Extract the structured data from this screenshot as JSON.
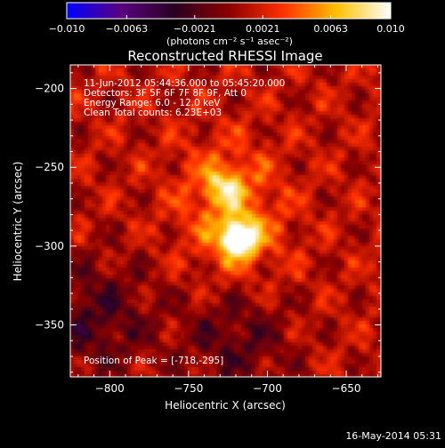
{
  "chart_data": {
    "type": "heatmap",
    "title": "Reconstructed RHESSI Image",
    "xlabel": "Heliocentric X (arcsec)",
    "ylabel": "Heliocentric Y (arcsec)",
    "xlim": [
      -825,
      -628
    ],
    "ylim": [
      -383,
      -185
    ],
    "xticks": [
      -800,
      -750,
      -700,
      -650
    ],
    "yticks": [
      -200,
      -250,
      -300,
      -350
    ],
    "xtick_labels": [
      "−800",
      "−750",
      "−700",
      "−650"
    ],
    "ytick_labels": [
      "−200",
      "−250",
      "−300",
      "−350"
    ],
    "colorbar": {
      "min": -0.01,
      "max": 0.01,
      "ticks": [
        -0.01,
        -0.0063,
        -0.0021,
        0.0021,
        0.0063,
        0.01
      ],
      "tick_labels": [
        "−0.010",
        "−0.0063",
        "−0.0021",
        "0.0021",
        "0.0063",
        "0.010"
      ],
      "unit_label": "(photons cm⁻² s⁻¹ asec⁻²)",
      "colors": [
        "#0000ff",
        "#5a0080",
        "#2a0020",
        "#8a0000",
        "#ff3000",
        "#ffc000",
        "#ffffff"
      ]
    },
    "annotations": {
      "time_range": "11-Jun-2012 05:44:36.000 to 05:45:20.000",
      "detectors": "Detectors: 3F 5F 6F 7F 8F 9F, Att 0",
      "energy": "Energy Range: 6.0 - 12.0 keV",
      "clean": "Clean    Total counts: 6.23E+03",
      "peak": "Position of Peak = [-718,-295]"
    },
    "sources": [
      {
        "x": -718,
        "y": -295,
        "peak": 0.01
      },
      {
        "x": -727,
        "y": -262,
        "peak": 0.0045
      }
    ],
    "grid": false
  },
  "footer": {
    "timestamp": "16-May-2014 05:31"
  }
}
